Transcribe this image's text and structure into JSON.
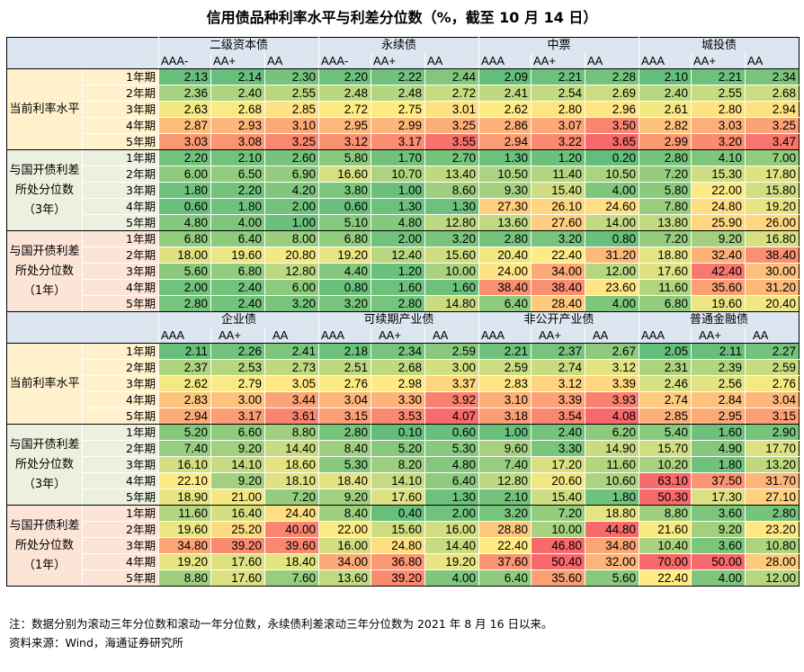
{
  "title": "信用债品种利率水平与利差分位数（%，截至 10 月 14 日）",
  "periods": [
    "1年期",
    "2年期",
    "3年期",
    "4年期",
    "5年期"
  ],
  "sections": [
    {
      "label": "当前利率水平",
      "color": "#fff1cc"
    },
    {
      "label": "与国开债利差所处分位数（3年）",
      "color": "#ebf1de"
    },
    {
      "label": "与国开债利差所处分位数（1年）",
      "color": "#fce4d6"
    }
  ],
  "blocks": [
    {
      "groups": [
        {
          "name": "二级资本债",
          "ratings": [
            "AAA-",
            "AA+",
            "AA"
          ]
        },
        {
          "name": "永续债",
          "ratings": [
            "AAA-",
            "AA+",
            "AA"
          ]
        },
        {
          "name": "中票",
          "ratings": [
            "AAA",
            "AA+",
            "AA"
          ]
        },
        {
          "name": "城投债",
          "ratings": [
            "AAA",
            "AA+",
            "AA"
          ]
        }
      ],
      "rows": [
        [
          "2.13",
          "2.14",
          "2.30",
          "2.20",
          "2.22",
          "2.44",
          "2.09",
          "2.21",
          "2.28",
          "2.10",
          "2.21",
          "2.34"
        ],
        [
          "2.36",
          "2.40",
          "2.55",
          "2.48",
          "2.48",
          "2.72",
          "2.41",
          "2.54",
          "2.69",
          "2.40",
          "2.55",
          "2.68"
        ],
        [
          "2.63",
          "2.68",
          "2.85",
          "2.72",
          "2.75",
          "3.01",
          "2.62",
          "2.80",
          "2.96",
          "2.61",
          "2.80",
          "2.94"
        ],
        [
          "2.87",
          "2.93",
          "3.10",
          "2.95",
          "2.99",
          "3.25",
          "2.86",
          "3.07",
          "3.50",
          "2.82",
          "3.03",
          "3.25"
        ],
        [
          "3.03",
          "3.08",
          "3.25",
          "3.12",
          "3.17",
          "3.55",
          "2.94",
          "3.22",
          "3.65",
          "2.99",
          "3.20",
          "3.47"
        ],
        [
          "2.20",
          "2.10",
          "2.60",
          "5.80",
          "1.70",
          "2.70",
          "1.30",
          "1.20",
          "0.20",
          "2.80",
          "4.10",
          "7.00"
        ],
        [
          "6.00",
          "6.50",
          "6.90",
          "16.60",
          "10.70",
          "13.40",
          "10.50",
          "11.40",
          "10.50",
          "7.20",
          "15.30",
          "17.80"
        ],
        [
          "1.80",
          "2.20",
          "4.20",
          "3.80",
          "1.00",
          "8.60",
          "9.30",
          "15.40",
          "4.00",
          "5.80",
          "22.00",
          "15.80"
        ],
        [
          "0.60",
          "1.80",
          "2.00",
          "0.60",
          "1.30",
          "1.30",
          "27.30",
          "26.10",
          "24.60",
          "7.80",
          "24.80",
          "19.20"
        ],
        [
          "4.80",
          "4.00",
          "1.00",
          "5.10",
          "4.80",
          "12.80",
          "13.60",
          "27.60",
          "14.00",
          "13.80",
          "25.90",
          "26.00"
        ],
        [
          "6.80",
          "6.40",
          "8.00",
          "6.80",
          "2.00",
          "3.20",
          "2.80",
          "3.20",
          "0.80",
          "7.20",
          "9.20",
          "16.80"
        ],
        [
          "18.00",
          "19.60",
          "20.80",
          "19.20",
          "12.40",
          "15.60",
          "20.40",
          "22.40",
          "31.20",
          "18.80",
          "32.40",
          "38.40"
        ],
        [
          "5.60",
          "6.80",
          "12.80",
          "4.40",
          "1.20",
          "10.00",
          "24.00",
          "34.00",
          "12.00",
          "17.60",
          "42.40",
          "30.00"
        ],
        [
          "2.00",
          "2.40",
          "6.00",
          "0.80",
          "1.60",
          "1.60",
          "38.40",
          "38.40",
          "23.60",
          "11.60",
          "35.60",
          "31.20"
        ],
        [
          "2.80",
          "2.40",
          "3.20",
          "3.20",
          "2.80",
          "14.80",
          "6.40",
          "28.40",
          "4.00",
          "6.80",
          "19.60",
          "20.40"
        ]
      ]
    },
    {
      "groups": [
        {
          "name": "企业债",
          "ratings": [
            "AAA",
            "AA+",
            "AA"
          ]
        },
        {
          "name": "可续期产业债",
          "ratings": [
            "AAA",
            "AA+",
            "AA"
          ]
        },
        {
          "name": "非公开产业债",
          "ratings": [
            "AAA",
            "AA+",
            "AA"
          ]
        },
        {
          "name": "普通金融债",
          "ratings": [
            "AAA",
            "AA+",
            "AA"
          ]
        }
      ],
      "rows": [
        [
          "2.11",
          "2.26",
          "2.41",
          "2.18",
          "2.34",
          "2.59",
          "2.21",
          "2.37",
          "2.67",
          "2.05",
          "2.11",
          "2.27"
        ],
        [
          "2.37",
          "2.53",
          "2.73",
          "2.51",
          "2.68",
          "3.00",
          "2.59",
          "2.74",
          "3.12",
          "2.31",
          "2.39",
          "2.59"
        ],
        [
          "2.62",
          "2.79",
          "3.05",
          "2.76",
          "2.98",
          "3.37",
          "2.83",
          "3.12",
          "3.39",
          "2.46",
          "2.56",
          "2.76"
        ],
        [
          "2.83",
          "3.00",
          "3.44",
          "3.04",
          "3.30",
          "3.92",
          "3.10",
          "3.39",
          "3.93",
          "2.74",
          "2.84",
          "3.04"
        ],
        [
          "2.94",
          "3.17",
          "3.61",
          "3.15",
          "3.53",
          "4.07",
          "3.18",
          "3.54",
          "4.08",
          "2.85",
          "2.95",
          "3.15"
        ],
        [
          "5.20",
          "6.60",
          "8.80",
          "2.80",
          "0.10",
          "0.60",
          "1.00",
          "2.40",
          "6.20",
          "5.40",
          "1.60",
          "2.90"
        ],
        [
          "7.40",
          "9.20",
          "14.40",
          "8.40",
          "5.20",
          "5.30",
          "9.60",
          "3.30",
          "14.90",
          "15.70",
          "4.90",
          "17.70"
        ],
        [
          "16.10",
          "14.10",
          "18.60",
          "5.30",
          "8.20",
          "4.80",
          "7.40",
          "17.20",
          "11.60",
          "10.20",
          "1.80",
          "13.20"
        ],
        [
          "22.10",
          "9.20",
          "18.10",
          "18.40",
          "14.10",
          "6.40",
          "12.80",
          "20.60",
          "10.60",
          "63.10",
          "37.50",
          "31.70"
        ],
        [
          "18.90",
          "21.00",
          "7.20",
          "9.20",
          "17.60",
          "1.30",
          "2.10",
          "15.40",
          "1.80",
          "50.30",
          "17.30",
          "27.10"
        ],
        [
          "11.60",
          "16.40",
          "24.40",
          "8.40",
          "0.40",
          "2.00",
          "3.20",
          "7.20",
          "18.80",
          "8.80",
          "3.60",
          "2.80"
        ],
        [
          "19.60",
          "25.20",
          "40.00",
          "22.00",
          "15.60",
          "16.00",
          "28.80",
          "10.00",
          "44.80",
          "21.60",
          "9.20",
          "23.20"
        ],
        [
          "34.80",
          "39.20",
          "39.60",
          "16.00",
          "24.80",
          "14.40",
          "22.40",
          "46.80",
          "34.80",
          "10.40",
          "3.60",
          "10.80"
        ],
        [
          "19.20",
          "17.60",
          "18.40",
          "34.00",
          "36.80",
          "19.20",
          "37.60",
          "50.40",
          "32.00",
          "70.00",
          "50.00",
          "28.00"
        ],
        [
          "8.80",
          "17.60",
          "7.60",
          "13.60",
          "39.20",
          "4.00",
          "6.40",
          "35.60",
          "5.60",
          "22.40",
          "4.00",
          "12.00"
        ]
      ]
    }
  ],
  "note": "注：数据分别为滚动三年分位数和滚动一年分位数，永续债利差滚动三年分位数为 2021 年 8 月 16 日以来。",
  "source": "资料来源：Wind，海通证券研究所"
}
